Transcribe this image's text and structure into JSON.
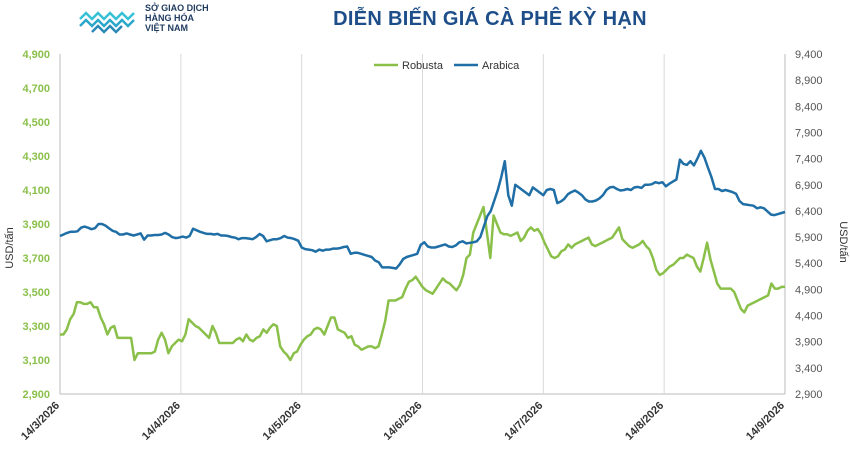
{
  "header": {
    "logo_lines": [
      "SỞ GIAO DỊCH",
      "HÀNG HÓA",
      "VIỆT NAM"
    ],
    "title": "DIỄN BIẾN GIÁ CÀ PHÊ KỲ HẠN"
  },
  "chart_data": {
    "type": "line",
    "ylabel_left": "USD/tấn",
    "ylabel_right": "USD/tấn",
    "ylim_left": [
      2900,
      4900
    ],
    "ylim_right": [
      2900,
      9400
    ],
    "yticks_left": [
      "2,900",
      "3,100",
      "3,300",
      "3,500",
      "3,700",
      "3,900",
      "4,100",
      "4,300",
      "4,500",
      "4,700",
      "4,900"
    ],
    "yticks_right": [
      "2,900",
      "3,400",
      "3,900",
      "4,400",
      "4,900",
      "5,400",
      "5,900",
      "6,400",
      "6,900",
      "7,400",
      "7,900",
      "8,400",
      "8,900",
      "9,400"
    ],
    "x_tick_labels": [
      "14/3/2026",
      "14/4/2026",
      "14/5/2026",
      "14/6/2026",
      "14/7/2026",
      "14/8/2026",
      "14/9/2026"
    ],
    "grid_vertical": true,
    "legend_position": "top-center",
    "series": [
      {
        "name": "Robusta",
        "axis": "left",
        "color": "#8ac04a",
        "values": [
          3250,
          3250,
          3280,
          3340,
          3370,
          3440,
          3440,
          3430,
          3430,
          3440,
          3410,
          3410,
          3350,
          3310,
          3250,
          3290,
          3300,
          3230,
          3230,
          3230,
          3230,
          3230,
          3100,
          3140,
          3140,
          3140,
          3140,
          3140,
          3150,
          3220,
          3260,
          3220,
          3140,
          3180,
          3200,
          3220,
          3210,
          3250,
          3340,
          3320,
          3300,
          3290,
          3270,
          3250,
          3230,
          3300,
          3260,
          3200,
          3200,
          3200,
          3200,
          3200,
          3220,
          3230,
          3210,
          3250,
          3220,
          3210,
          3230,
          3240,
          3280,
          3260,
          3290,
          3310,
          3300,
          3180,
          3150,
          3130,
          3100,
          3140,
          3150,
          3190,
          3220,
          3240,
          3250,
          3280,
          3290,
          3280,
          3250,
          3300,
          3350,
          3350,
          3280,
          3270,
          3260,
          3230,
          3240,
          3190,
          3180,
          3160,
          3170,
          3180,
          3180,
          3170,
          3180,
          3250,
          3330,
          3450,
          3450,
          3450,
          3460,
          3470,
          3520,
          3560,
          3570,
          3590,
          3560,
          3530,
          3510,
          3500,
          3490,
          3520,
          3550,
          3580,
          3560,
          3550,
          3530,
          3510,
          3540,
          3600,
          3700,
          3720,
          3850,
          3900,
          3950,
          4000,
          3850,
          3700,
          3950,
          3900,
          3850,
          3840,
          3840,
          3830,
          3840,
          3850,
          3800,
          3820,
          3860,
          3880,
          3860,
          3870,
          3840,
          3790,
          3750,
          3710,
          3700,
          3710,
          3740,
          3750,
          3780,
          3760,
          3780,
          3790,
          3800,
          3810,
          3820,
          3780,
          3770,
          3780,
          3790,
          3800,
          3810,
          3820,
          3850,
          3880,
          3810,
          3790,
          3770,
          3760,
          3770,
          3780,
          3800,
          3770,
          3750,
          3700,
          3630,
          3600,
          3610,
          3630,
          3650,
          3660,
          3680,
          3700,
          3700,
          3720,
          3710,
          3700,
          3650,
          3620,
          3700,
          3790,
          3690,
          3620,
          3550,
          3520,
          3520,
          3520,
          3520,
          3500,
          3450,
          3400,
          3380,
          3420,
          3430,
          3440,
          3450,
          3460,
          3470,
          3480,
          3550,
          3520,
          3520,
          3530,
          3530
        ]
      },
      {
        "name": "Arabica",
        "axis": "right",
        "color": "#1f6fa6",
        "values": [
          5920,
          5950,
          5980,
          6000,
          6000,
          6010,
          6080,
          6100,
          6080,
          6050,
          6070,
          6150,
          6150,
          6120,
          6070,
          6020,
          6000,
          5950,
          5950,
          5970,
          5950,
          5930,
          5950,
          5970,
          5850,
          5930,
          5930,
          5940,
          5940,
          5950,
          5980,
          5950,
          5900,
          5880,
          5890,
          5910,
          5890,
          5920,
          6060,
          6030,
          6000,
          5980,
          5960,
          5960,
          5950,
          5960,
          5930,
          5930,
          5920,
          5900,
          5890,
          5860,
          5880,
          5880,
          5870,
          5860,
          5900,
          5960,
          5920,
          5820,
          5840,
          5860,
          5860,
          5880,
          5920,
          5890,
          5880,
          5860,
          5830,
          5700,
          5670,
          5660,
          5650,
          5620,
          5660,
          5640,
          5660,
          5660,
          5680,
          5680,
          5690,
          5710,
          5720,
          5580,
          5600,
          5600,
          5580,
          5560,
          5540,
          5520,
          5450,
          5420,
          5320,
          5320,
          5320,
          5310,
          5300,
          5380,
          5480,
          5520,
          5540,
          5560,
          5580,
          5750,
          5800,
          5720,
          5700,
          5700,
          5720,
          5740,
          5760,
          5720,
          5710,
          5740,
          5800,
          5820,
          5780,
          5790,
          5800,
          5820,
          5900,
          6100,
          6300,
          6400,
          6600,
          6800,
          7050,
          7350,
          6700,
          6500,
          6900,
          6850,
          6800,
          6750,
          6700,
          6850,
          6800,
          6750,
          6700,
          6800,
          6820,
          6800,
          6550,
          6580,
          6630,
          6720,
          6760,
          6790,
          6750,
          6700,
          6620,
          6580,
          6580,
          6600,
          6640,
          6700,
          6800,
          6850,
          6860,
          6820,
          6790,
          6800,
          6820,
          6800,
          6850,
          6860,
          6840,
          6900,
          6900,
          6910,
          6950,
          6930,
          6950,
          6870,
          6920,
          6960,
          7000,
          7380,
          7300,
          7280,
          7350,
          7270,
          7400,
          7550,
          7420,
          7230,
          7050,
          6820,
          6820,
          6780,
          6800,
          6780,
          6760,
          6730,
          6590,
          6530,
          6520,
          6510,
          6500,
          6450,
          6470,
          6450,
          6390,
          6330,
          6320,
          6340,
          6360,
          6380
        ]
      }
    ]
  }
}
